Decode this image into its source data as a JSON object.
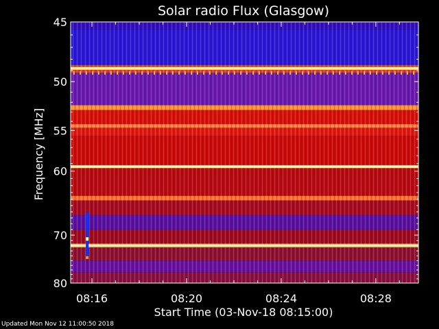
{
  "chart_data": {
    "type": "heatmap",
    "title": "Solar radio Flux (Glasgow)",
    "xlabel": "Start Time (03-Nov-18 08:15:00)",
    "ylabel": "Frequency [MHz]",
    "x_ticks": [
      "08:16",
      "08:20",
      "08:24",
      "08:28"
    ],
    "x_tick_minutes": [
      16,
      20,
      24,
      28
    ],
    "xlim_minutes": [
      15.1,
      29.8
    ],
    "y_ticks": [
      45,
      50,
      55,
      60,
      70,
      80
    ],
    "ylim": [
      45,
      80
    ],
    "y_scale": "reciprocal",
    "bands": [
      {
        "from": 45,
        "to": 45.6,
        "color": "#3010c0"
      },
      {
        "from": 45.6,
        "to": 48.5,
        "color": "#2a18d8"
      },
      {
        "from": 48.5,
        "to": 49.2,
        "color": "#e04020"
      },
      {
        "from": 49.2,
        "to": 52.3,
        "color": "#6a1ab0"
      },
      {
        "from": 52.3,
        "to": 52.8,
        "color": "#ff9030"
      },
      {
        "from": 52.8,
        "to": 54.3,
        "color": "#d81008"
      },
      {
        "from": 54.3,
        "to": 54.7,
        "color": "#ff8040"
      },
      {
        "from": 54.7,
        "to": 55.6,
        "color": "#e01810"
      },
      {
        "from": 55.6,
        "to": 59.2,
        "color": "#cc0a08"
      },
      {
        "from": 59.2,
        "to": 59.6,
        "color": "#ffd060"
      },
      {
        "from": 59.6,
        "to": 63.5,
        "color": "#b80a10"
      },
      {
        "from": 63.5,
        "to": 64.2,
        "color": "#ff7030"
      },
      {
        "from": 64.2,
        "to": 66.5,
        "color": "#a80a20"
      },
      {
        "from": 66.5,
        "to": 69.0,
        "color": "#5a10a0"
      },
      {
        "from": 69.0,
        "to": 71.6,
        "color": "#a00a20"
      },
      {
        "from": 71.6,
        "to": 72.3,
        "color": "#ffb050"
      },
      {
        "from": 72.3,
        "to": 75.0,
        "color": "#901030"
      },
      {
        "from": 75.0,
        "to": 77.5,
        "color": "#6a10a0"
      },
      {
        "from": 77.5,
        "to": 80,
        "color": "#8a1040"
      }
    ],
    "lines": [
      {
        "freq": 48.8,
        "color": "#ffe070"
      },
      {
        "freq": 59.4,
        "color": "#ffe680"
      },
      {
        "freq": 72.0,
        "color": "#ffd070"
      }
    ],
    "burst": {
      "minute": 15.8,
      "from": 66.0,
      "to": 74.5
    }
  },
  "footer": "Updated Mon Nov 12 11:00:50 2018"
}
